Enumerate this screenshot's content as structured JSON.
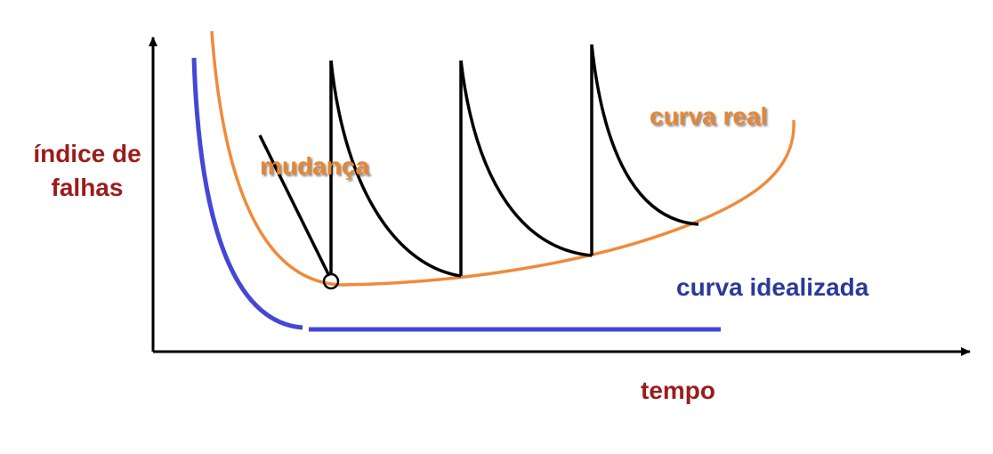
{
  "labels": {
    "y_axis": [
      "índice de",
      "falhas"
    ],
    "x_axis": "tempo",
    "change": "mudança",
    "real_curve": "curva real",
    "idealized_curve": "curva idealizada"
  }
}
